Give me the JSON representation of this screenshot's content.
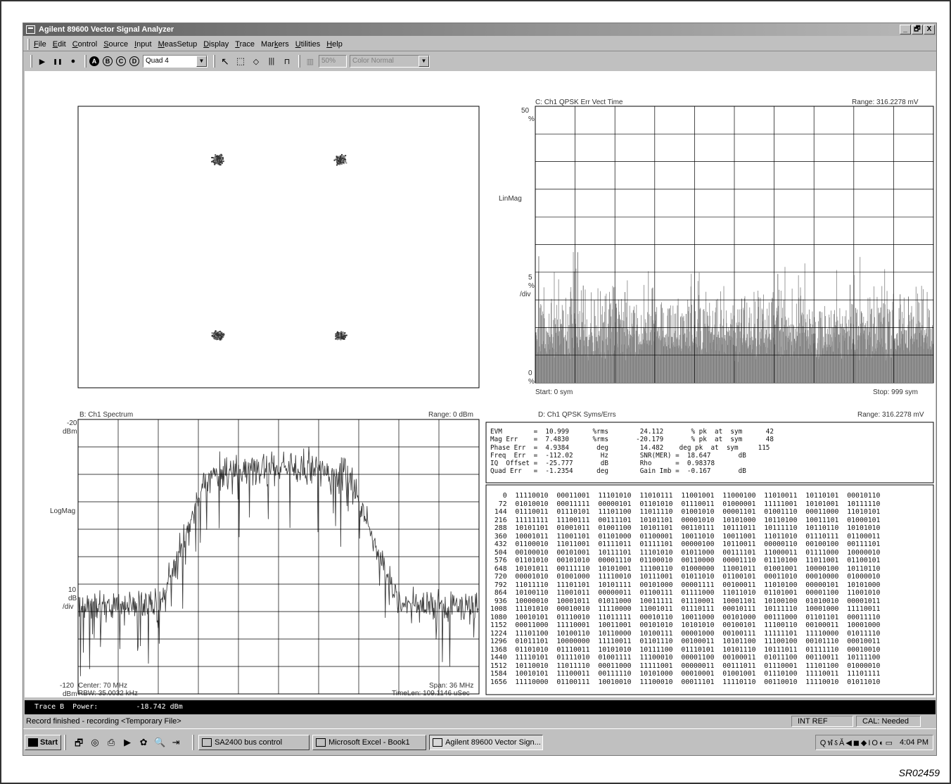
{
  "window": {
    "title": "Agilent 89600 Vector Signal Analyzer",
    "controls": [
      "_",
      "🗗",
      "X"
    ]
  },
  "menu": [
    {
      "u": "F",
      "rest": "ile"
    },
    {
      "u": "E",
      "rest": "dit"
    },
    {
      "u": "C",
      "rest": "ontrol"
    },
    {
      "u": "S",
      "rest": "ource"
    },
    {
      "u": "I",
      "rest": "nput"
    },
    {
      "u": "M",
      "rest": "easSetup"
    },
    {
      "u": "D",
      "rest": "isplay"
    },
    {
      "u": "T",
      "rest": "race"
    },
    {
      "pre": "Mar",
      "u": "k",
      "rest": "ers"
    },
    {
      "u": "U",
      "rest": "tilities"
    },
    {
      "u": "H",
      "rest": "elp"
    }
  ],
  "toolbar": {
    "play": "▶",
    "pause": "❚❚",
    "record": "●",
    "traces": [
      "A",
      "B",
      "C",
      "D"
    ],
    "layout": "Quad 4",
    "pointer": "↖",
    "box": "⬚",
    "marker": "◇",
    "bars": "|||",
    "peak": "⊓",
    "zoom": "50%",
    "color": "Color Normal"
  },
  "pane_a": {
    "clusters": [
      {
        "i": -1,
        "q": 1
      },
      {
        "i": 1,
        "q": 1
      },
      {
        "i": -1,
        "q": -1
      },
      {
        "i": 1,
        "q": -1
      }
    ]
  },
  "pane_c": {
    "title": "C: Ch1 QPSK Err Vect Time",
    "range": "Range: 316.2278 mV",
    "top": "50",
    "top_unit": "%",
    "scale": "LinMag",
    "mid": "5",
    "mid_unit": "%",
    "mid_unit2": "/div",
    "bottom": "0",
    "bottom_unit": "%",
    "start": "Start: 0  sym",
    "stop": "Stop: 999  sym",
    "chart_data": {
      "type": "bar",
      "x_range": [
        0,
        999
      ],
      "y_range": [
        0,
        50
      ],
      "ylabel": "LinMag",
      "typical_level": 10.5,
      "peak_level": 24.1,
      "grid": true
    }
  },
  "pane_b": {
    "title": "B: Ch1 Spectrum",
    "range": "Range: 0 dBm",
    "top": "-20",
    "top_unit": "dBm",
    "scale": "LogMag",
    "mid": "10",
    "mid_unit": "dB",
    "mid_unit2": "/div",
    "bottom": "-120",
    "bottom_unit": "dBm",
    "center": "Center: 70 MHz",
    "rbw": "RBW: 35.0032 kHz",
    "span": "Span: 36 MHz",
    "timelen": "TimeLen: 109.1146 uSec",
    "chart_data": {
      "type": "line",
      "x_range": [
        52,
        88
      ],
      "y_range": [
        -120,
        -20
      ],
      "ylabel": "LogMag",
      "noise_floor": -88,
      "signal_level": -37,
      "grid": true
    }
  },
  "pane_d": {
    "title": "D: Ch1 QPSK Syms/Errs",
    "range": "Range: 316.2278 mV",
    "errors": [
      "EVM        =  10.999      %rms        24.112       % pk  at  sym      42",
      "Mag Err    =  7.4830      %rms       -20.179       % pk  at  sym      48",
      "Phase Err  =  4.9384       deg        14.482    deg pk  at  sym     115",
      "Freq  Err  =  -112.02       Hz        SNR(MER) =  18.647       dB",
      "IQ  Offset =  -25.777       dB        Rho      =  0.98378",
      "Quad Err   =  -1.2354      deg        Gain Imb =  -0.167       dB"
    ],
    "symbols": [
      "   0  11110010  00011001  11101010  11010111  11001001  11000100  11010011  10110101  00010110",
      "  72  01010010  00011111  00000101  01101010  01110011  01000001  11111001  10101001  10111110",
      " 144  01110011  01110101  11101100  11011110  01001010  00001101  01001110  00011000  11010101",
      " 216  11111111  11100111  00111101  10101101  00001010  10101000  10110100  10011101  01000101",
      " 288  10101101  01001011  01001100  10101101  00110111  10111011  10111110  10110110  10101010",
      " 360  10001011  11001101  01101000  01100001  10011010  10011001  11011010  01110111  01100011",
      " 432  01100010  11011001  01111011  01111101  00000100  10110011  00000110  00100100  00111101",
      " 504  00100010  00101001  10111101  11101010  01011000  00111101  11000011  01111000  10000010",
      " 576  01101010  00101010  00001110  01100010  00110000  00001110  01110100  11011001  01100101",
      " 648  10101011  00111110  10101001  11100110  01000000  11001011  01001001  10000100  10110110",
      " 720  00001010  01001000  11110010  10111001  01011010  01100101  00011010  00010000  01000010",
      " 792  11011110  11101101  10101111  00101000  00001111  00100011  11010100  00000101  10101000",
      " 864  10100110  11001011  00000011  01100111  01111000  11011010  01101001  00001100  11001010",
      " 936  10000010  10001011  01011000  10011111  01110001  10001101  10100100  01010010  00001011",
      "1008  11101010  00010010  11110000  11001011  01110111  00010111  10111110  10001000  11110011",
      "1080  10010101  01110010  11011111  00010110  10011000  00101000  00111000  01101101  00011110",
      "1152  00011000  11110001  10011001  00101010  10101010  00100101  11100110  00100011  10001000",
      "1224  11101100  10100110  10110000  10100111  00001000  00100111  11111101  11110000  01011110",
      "1296  01011101  10000000  11110011  01101110  00100011  10101100  11100100  00101110  00010011",
      "1368  01101010  01110011  10101010  10111100  01110101  10101110  10111011  01111110  00010010",
      "1440  11110101  01111010  01001111  11100010  00001100  00100011  01011100  00110011  10111100",
      "1512  10110010  11011110  00011000  11111001  00000011  00111011  01110001  11101100  01000010",
      "1584  10010101  11100011  00111110  10101000  00010001  01001001  01110100  11110011  11101111",
      "1656  11110000  01100111  10010010  11100010  00011101  11110110  00110010  11110010  01011010"
    ]
  },
  "trace_readout": "Trace B  Power:         -18.742 dBm",
  "status": {
    "message": "Record finished - recording <Temporary File>",
    "intref": "INT REF",
    "cal": "CAL: Needed"
  },
  "taskbar": {
    "start": "Start",
    "quicklaunch": [
      "🗗",
      "◎",
      "⎙",
      "▶",
      "✿",
      "🔍",
      "⇥"
    ],
    "tasks": [
      "SA2400 bus control",
      "Microsoft Excel - Book1",
      "Agilent 89600 Vector Sign..."
    ],
    "tray_icons": "QฬऽǍ◀◼◆IO◐▭",
    "clock": "4:04 PM"
  },
  "figure_code": "SR02459"
}
